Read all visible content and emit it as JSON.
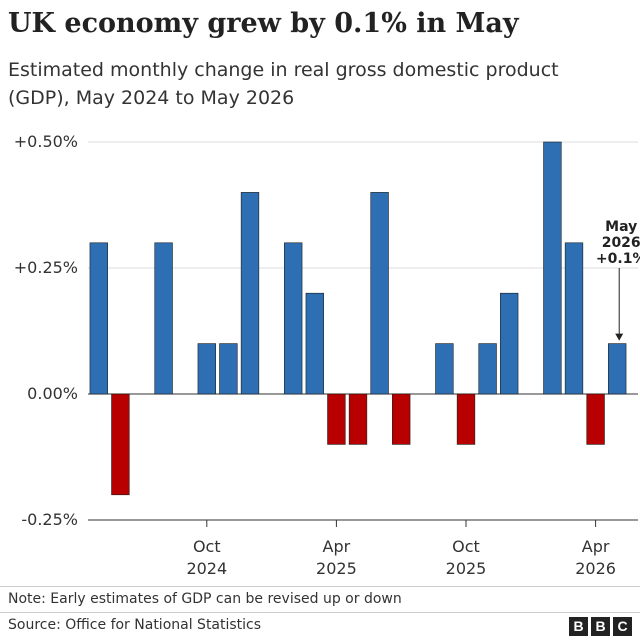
{
  "title": "UK economy grew by 0.1% in May",
  "subtitle": "Estimated monthly change in real gross domestic product (GDP), May 2024 to May 2026",
  "note": "Note: Early estimates of GDP can be revised up or down",
  "source": "Source: Office for National Statistics",
  "logo_letters": [
    "B",
    "B",
    "C"
  ],
  "colors": {
    "positive": "#2e6fb3",
    "negative": "#b80000",
    "grid": "#dddddd",
    "axis": "#333333"
  },
  "chart_data": {
    "type": "bar",
    "title": "UK economy grew by 0.1% in May",
    "subtitle": "Estimated monthly change in real gross domestic product (GDP), May 2024 to May 2026",
    "categories": [
      "May 2024",
      "Jun 2024",
      "Jul 2024",
      "Aug 2024",
      "Sep 2024",
      "Oct 2024",
      "Nov 2024",
      "Dec 2024",
      "Jan 2025",
      "Feb 2025",
      "Mar 2025",
      "Apr 2025",
      "May 2025",
      "Jun 2025",
      "Jul 2025",
      "Aug 2025",
      "Sep 2025",
      "Oct 2025",
      "Nov 2025",
      "Dec 2025",
      "Jan 2026",
      "Feb 2026",
      "Mar 2026",
      "Apr 2026",
      "May 2026"
    ],
    "values": [
      0.3,
      -0.2,
      0,
      0.3,
      0,
      0.1,
      0.1,
      0.4,
      0,
      0.3,
      0.2,
      -0.1,
      -0.1,
      0.4,
      -0.1,
      0,
      0.1,
      -0.1,
      0.1,
      0.2,
      0,
      0.5,
      0.3,
      -0.1,
      0.1
    ],
    "ylim": [
      -0.25,
      0.5
    ],
    "yticks": [
      {
        "value": 0.5,
        "label": "+0.50%"
      },
      {
        "value": 0.25,
        "label": "+0.25%"
      },
      {
        "value": 0,
        "label": "0.00%"
      },
      {
        "value": -0.25,
        "label": "-0.25%"
      }
    ],
    "xticks": [
      {
        "index": 5,
        "label": [
          "Oct",
          "2024"
        ]
      },
      {
        "index": 11,
        "label": [
          "Apr",
          "2025"
        ]
      },
      {
        "index": 17,
        "label": [
          "Oct",
          "2025"
        ]
      },
      {
        "index": 23,
        "label": [
          "Apr",
          "2026"
        ]
      }
    ],
    "annotation": {
      "index": 24,
      "lines": [
        "May",
        "2026",
        "+0.1%"
      ]
    },
    "grid": true,
    "xlabel": "",
    "ylabel": ""
  }
}
